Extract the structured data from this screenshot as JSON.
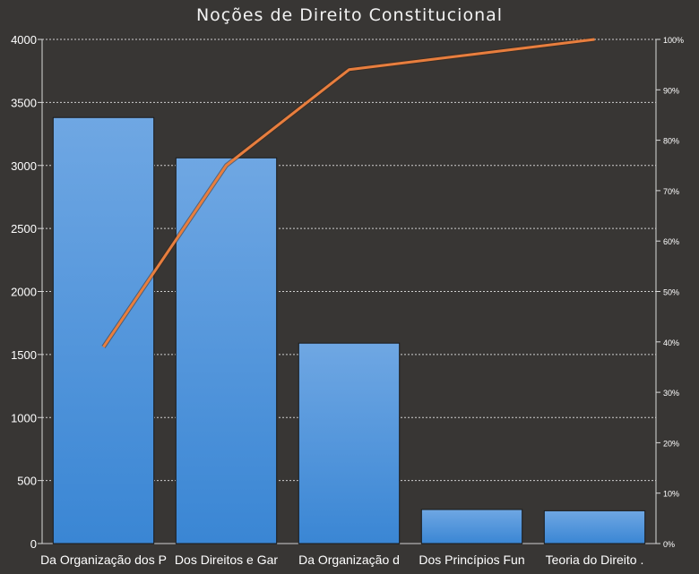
{
  "chart_data": {
    "type": "bar",
    "title": "Noções de Direito Constitucional",
    "categories": [
      "Da Organização dos P",
      "Dos Direitos e Gar",
      "Da Organização d",
      "Dos Princípios Fun",
      "Teoria do Direito ."
    ],
    "series": [
      {
        "type": "bar",
        "values": [
          3380,
          3060,
          1590,
          270,
          260
        ]
      },
      {
        "type": "line",
        "axis": "right",
        "values": [
          39,
          75,
          94,
          97,
          100
        ]
      }
    ],
    "ylim": [
      0,
      4000
    ],
    "yticks": [
      "0",
      "500",
      "1000",
      "1500",
      "2000",
      "2500",
      "3000",
      "3500",
      "4000"
    ],
    "y2lim": [
      0,
      100
    ],
    "y2ticks": [
      "0%",
      "10%",
      "20%",
      "30%",
      "40%",
      "50%",
      "60%",
      "70%",
      "80%",
      "90%",
      "100%"
    ],
    "grid": true,
    "colors": {
      "bar": "#4a8fd6",
      "line": "#e87e3e",
      "grid": "#cfcfcf",
      "background": "#383634"
    }
  }
}
